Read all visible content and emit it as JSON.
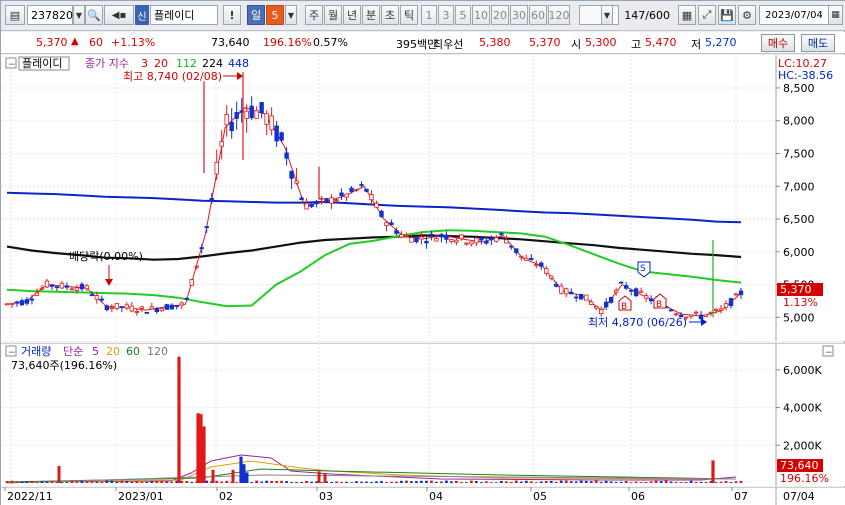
{
  "toolbar": {
    "stock_code": "237820",
    "stock_badge": "신",
    "stock_name": "플레이디",
    "exclaim": "!",
    "period_active": "일",
    "period_active_n": "5",
    "periods": [
      "주",
      "월",
      "년",
      "분",
      "초",
      "틱"
    ],
    "intervals": [
      "1",
      "3",
      "5",
      "10",
      "20",
      "30",
      "60",
      "120"
    ],
    "count": "147",
    "count_total": "/600",
    "date": "2023/07/04"
  },
  "quote": {
    "price": "5,370",
    "change": "60",
    "change_pct": "+1.13%",
    "volume": "73,640",
    "volume_ratio": "196.16%",
    "turnover": "0.57%",
    "amount": "395백만",
    "best_label": "최우선",
    "ask": "5,380",
    "bid": "5,370",
    "open_label": "시",
    "open": "5,300",
    "high_label": "고",
    "high": "5,470",
    "low_label": "저",
    "low": "5,270",
    "buy_label": "매수",
    "sell_label": "매도"
  },
  "price_pane": {
    "name_tag": "플레이디",
    "ma_label": "종가 지수",
    "ma_periods": [
      "3",
      "20",
      "112",
      "224",
      "448"
    ],
    "lc": "LC:10.27",
    "hc": "HC:-38.56",
    "high_annotation": "최고 8,740 (02/08)",
    "low_annotation": "최저 4,870 (06/26)",
    "dividend": "배당락(0.00%)",
    "current_price": "5,370",
    "current_pct": "1.13%",
    "yaxis": [
      "8,500",
      "8,000",
      "7,500",
      "7,000",
      "6,500",
      "6,000",
      "5,500",
      "5,000"
    ]
  },
  "volume_pane": {
    "title": "거래량",
    "ma_label": "단순",
    "ma_periods": [
      "5",
      "20",
      "60",
      "120"
    ],
    "volume_text": "73,640주(196.16%)",
    "yaxis": [
      "6,000K",
      "4,000K",
      "2,000K"
    ],
    "current_volume": "73,640",
    "current_ratio": "196.16%"
  },
  "xaxis": {
    "labels": [
      "2022/11",
      "2023/01",
      "02",
      "03",
      "04",
      "05",
      "06",
      "07"
    ],
    "last": "07/04"
  },
  "chart_data": {
    "type": "candlestick",
    "title": "플레이디",
    "price_range": [
      4700,
      8850
    ],
    "trend_lines": [
      {
        "name": "224",
        "y": [
          6900,
          6890,
          6880,
          6860,
          6840,
          6830,
          6820,
          6800,
          6780,
          6770,
          6760,
          6750,
          6750,
          6760,
          6740,
          6720,
          6700,
          6690,
          6680,
          6660,
          6640,
          6620,
          6600,
          6590,
          6570,
          6550,
          6530,
          6510,
          6490,
          6460,
          6450
        ]
      },
      {
        "name": "112",
        "y": [
          6080,
          6020,
          5980,
          5950,
          5910,
          5900,
          5880,
          5890,
          5930,
          5980,
          6020,
          6080,
          6140,
          6180,
          6200,
          6220,
          6230,
          6250,
          6240,
          6230,
          6210,
          6190,
          6160,
          6130,
          6100,
          6060,
          6030,
          6000,
          5970,
          5950,
          5920
        ]
      },
      {
        "name": "20",
        "y": [
          5420,
          5400,
          5390,
          5380,
          5370,
          5360,
          5340,
          5300,
          5230,
          5170,
          5180,
          5500,
          5700,
          5950,
          6120,
          6170,
          6240,
          6300,
          6330,
          6320,
          6300,
          6280,
          6230,
          6100,
          5960,
          5820,
          5700,
          5660,
          5620,
          5570,
          5530
        ]
      },
      {
        "name": "3",
        "y": [
          5200,
          5250,
          5500,
          5470,
          5450,
          5170,
          5150,
          5110,
          5160,
          5200,
          6270,
          7900,
          8200,
          8100,
          7600,
          6700,
          6760,
          6850,
          7000,
          6500,
          6230,
          6200,
          6250,
          6190,
          6150,
          6250,
          5900,
          5780,
          5400,
          5330,
          5100,
          5500,
          5340,
          5200,
          5050,
          5020,
          5100,
          5370
        ]
      }
    ],
    "volume_markers": [
      {
        "date": "2023/01/30",
        "volume_k": 6700
      },
      {
        "date": "2023/02/06",
        "volume_k": 3700
      },
      {
        "date": "2023/02/07",
        "volume_k": 3650
      },
      {
        "date": "2023/02/08",
        "volume_k": 3000
      },
      {
        "date": "2023/02/20",
        "volume_k": 1400
      },
      {
        "date": "2023/06/29",
        "volume_k": 1200
      }
    ]
  }
}
